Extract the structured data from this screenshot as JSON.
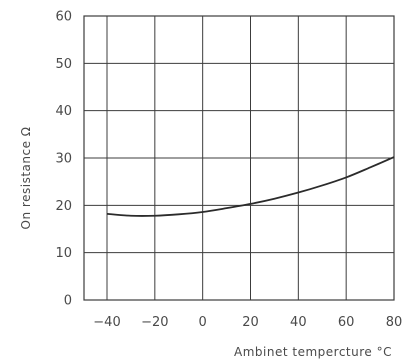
{
  "chart_data": {
    "type": "line",
    "title": "",
    "xlabel": "Ambinet tempercture °C",
    "ylabel": "On resistance Ω",
    "xlim": [
      -45,
      80
    ],
    "ylim": [
      0,
      60
    ],
    "x_ticks": [
      -40,
      -20,
      0,
      20,
      40,
      60,
      80
    ],
    "y_ticks": [
      0,
      10,
      20,
      30,
      40,
      50,
      60
    ],
    "x_tick_labels": [
      "−40",
      "−20",
      "0",
      "20",
      "40",
      "60",
      "80"
    ],
    "y_tick_labels": [
      "0",
      "10",
      "20",
      "30",
      "40",
      "50",
      "60"
    ],
    "grid": true,
    "series": [
      {
        "x": [
          -40,
          -30,
          -20,
          -10,
          0,
          10,
          20,
          30,
          40,
          50,
          60,
          70,
          80
        ],
        "values": [
          18.2,
          17.8,
          17.8,
          18.1,
          18.6,
          19.4,
          20.3,
          21.4,
          22.7,
          24.2,
          25.9,
          28.0,
          30.2
        ]
      }
    ],
    "colors": {
      "line": "#2b2b2b",
      "grid": "#3c3c3c",
      "text": "#4a4a4a"
    }
  }
}
